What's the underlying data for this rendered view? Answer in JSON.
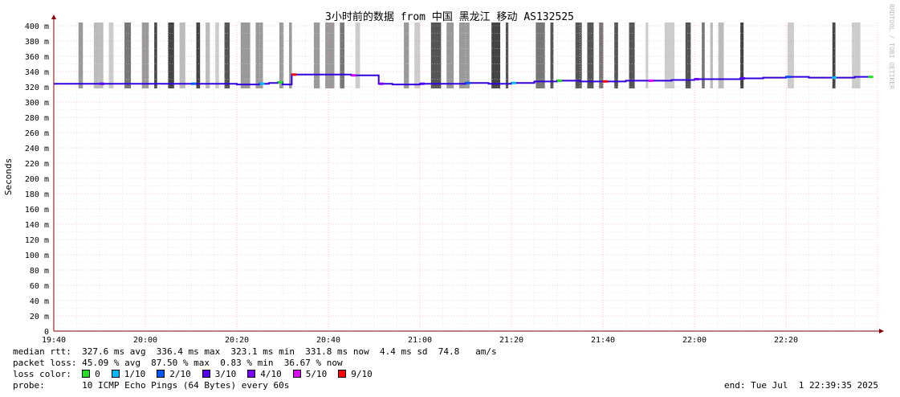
{
  "chart_data": {
    "type": "line",
    "title": "3小时前的数据 from 中国 黑龙江 移动 AS132525",
    "ylabel": "Seconds",
    "watermark": "RRDTOOL / TOBI OETIKER",
    "yticks": [
      "0",
      "20 m",
      "40 m",
      "60 m",
      "80 m",
      "100 m",
      "120 m",
      "140 m",
      "160 m",
      "180 m",
      "200 m",
      "220 m",
      "240 m",
      "260 m",
      "280 m",
      "300 m",
      "320 m",
      "340 m",
      "360 m",
      "380 m",
      "400 m"
    ],
    "ylim": [
      0,
      400
    ],
    "xticks": [
      "19:40",
      "20:00",
      "20:20",
      "20:40",
      "21:00",
      "21:20",
      "21:40",
      "22:00",
      "22:20"
    ],
    "xlim_minutes": [
      0,
      180
    ],
    "series": [
      {
        "name": "median rtt",
        "x": [
          0,
          10,
          20,
          30,
          40,
          45,
          47,
          49,
          50,
          52,
          60,
          65,
          70,
          71,
          74,
          80,
          85,
          90,
          95,
          100,
          105,
          110,
          115,
          120,
          125,
          130,
          135,
          140,
          145,
          150,
          155,
          160,
          165,
          170,
          175,
          178
        ],
        "values": [
          324,
          324,
          324,
          324,
          323,
          324,
          325,
          326,
          323,
          336,
          336,
          335,
          335,
          324,
          323,
          324,
          324,
          325,
          324,
          325,
          327,
          328,
          327,
          327,
          328,
          328,
          329,
          330,
          330,
          331,
          332,
          333,
          332,
          332,
          333,
          333
        ]
      }
    ],
    "loss_colors": [
      "#22dd22",
      "#00b8ff",
      "#0059ff",
      "#5500ff",
      "#7a00ff",
      "#dd00ff",
      "#ff0000"
    ]
  },
  "stats": {
    "median_rtt": "median rtt:  327.6 ms avg  336.4 ms max  323.1 ms min  331.8 ms now  4.4 ms sd  74.8   am/s",
    "packet_loss": "packet loss: 45.09 % avg  87.50 % max  0.83 % min  36.67 % now",
    "loss_color_label": "loss color:",
    "legend": [
      "0",
      "1/10",
      "2/10",
      "3/10",
      "4/10",
      "5/10",
      "9/10"
    ],
    "probe": "probe:       10 ICMP Echo Pings (64 Bytes) every 60s",
    "end": "end: Tue Jul  1 22:39:35 2025"
  }
}
